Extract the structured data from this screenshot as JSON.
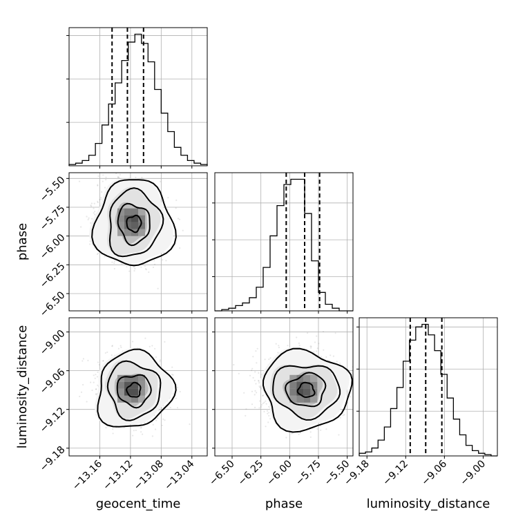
{
  "chart_data": {
    "type": "corner",
    "parameters": [
      {
        "name": "geocent_time",
        "label": "geocent_time",
        "range": [
          -13.2,
          -13.02
        ],
        "ticks": [
          -13.16,
          -13.12,
          -13.08,
          -13.04
        ],
        "tick_labels": [
          "−13.16",
          "−13.12",
          "−13.08",
          "−13.04"
        ],
        "quantiles": [
          -13.144,
          -13.124,
          -13.103
        ],
        "mean": -13.119,
        "std": 0.02,
        "histogram_counts": [
          1,
          2,
          4,
          8,
          17,
          31,
          47,
          63,
          80,
          94,
          100,
          93,
          79,
          58,
          40,
          26,
          14,
          8,
          4,
          2,
          1
        ],
        "histogram_y_ticks": [
          33,
          66,
          99
        ]
      },
      {
        "name": "phase",
        "label": "phase",
        "range": [
          -6.65,
          -5.45
        ],
        "ticks": [
          -6.5,
          -6.25,
          -6.0,
          -5.75,
          -5.5
        ],
        "tick_labels": [
          "−6.50",
          "−6.25",
          "−6.00",
          "−5.75",
          "−5.50"
        ],
        "quantiles": [
          -6.03,
          -5.87,
          -5.74
        ],
        "mean": -5.88,
        "std": 0.16,
        "histogram_counts": [
          0,
          1,
          2,
          4,
          6,
          10,
          18,
          33,
          57,
          80,
          96,
          100,
          100,
          74,
          38,
          14,
          5,
          2,
          0,
          0
        ],
        "histogram_y_ticks": [
          26,
          54,
          82
        ]
      },
      {
        "name": "luminosity_distance",
        "label": "luminosity_distance",
        "range": [
          -9.192,
          -8.978
        ],
        "ticks": [
          -9.18,
          -9.12,
          -9.06,
          -9.0
        ],
        "tick_labels": [
          "−9.18",
          "−9.12",
          "−9.06",
          "−9.00"
        ],
        "quantiles": [
          -9.113,
          -9.089,
          -9.064
        ],
        "mean": -9.088,
        "std": 0.024,
        "histogram_counts": [
          2,
          3,
          6,
          12,
          22,
          36,
          52,
          72,
          88,
          98,
          100,
          92,
          80,
          62,
          44,
          28,
          16,
          8,
          4,
          2,
          1,
          0
        ],
        "histogram_y_ticks": [
          34,
          66,
          98
        ]
      }
    ],
    "correlations": {
      "phase|geocent_time": 0.0,
      "luminosity_distance|geocent_time": 0.0,
      "luminosity_distance|phase": 0.0
    },
    "contour_levels": [
      "0.12",
      "0.34",
      "0.61",
      "0.86"
    ],
    "grid": true,
    "title": "",
    "xlabels": [
      "geocent_time",
      "phase",
      "luminosity_distance"
    ],
    "ylabels": [
      "phase",
      "luminosity_distance"
    ]
  }
}
